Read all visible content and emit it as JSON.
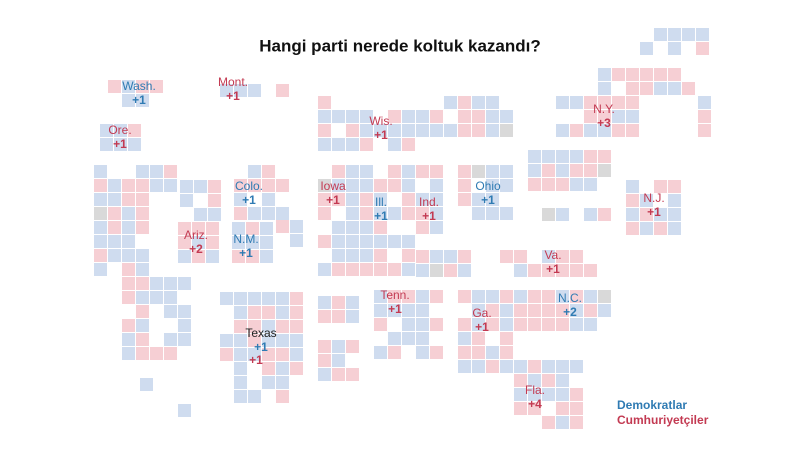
{
  "title": "Hangi parti nerede koltuk kazandı?",
  "parties": [
    {
      "name": "Demokratlar",
      "color": "#2f7bb3",
      "seats": [
        {
          "state": "Wash.",
          "gain": "+1"
        },
        {
          "state": "Colo.",
          "gain": "+1"
        },
        {
          "state": "Ill.",
          "gain": "+1"
        },
        {
          "state": "N.M.",
          "gain": "+1"
        },
        {
          "state": "Ohio",
          "gain": "+1"
        },
        {
          "state": "N.C.",
          "gain": "+2"
        },
        {
          "state": "Texas",
          "gain": "+1"
        }
      ]
    },
    {
      "name": "Cumhuriyetçiler",
      "color": "#c33a52",
      "seats": [
        {
          "state": "Mont.",
          "gain": "+1"
        },
        {
          "state": "Ore.",
          "gain": "+1"
        },
        {
          "state": "Wis.",
          "gain": "+1"
        },
        {
          "state": "N.Y.",
          "gain": "+3"
        },
        {
          "state": "Iowa",
          "gain": "+1"
        },
        {
          "state": "Ind.",
          "gain": "+1"
        },
        {
          "state": "N.J.",
          "gain": "+1"
        },
        {
          "state": "Ariz.",
          "gain": "+2"
        },
        {
          "state": "Va.",
          "gain": "+1"
        },
        {
          "state": "Tenn.",
          "gain": "+1"
        },
        {
          "state": "Ga.",
          "gain": "+1"
        },
        {
          "state": "Fla.",
          "gain": "+4"
        },
        {
          "gain": "+1"
        }
      ]
    }
  ]
}
